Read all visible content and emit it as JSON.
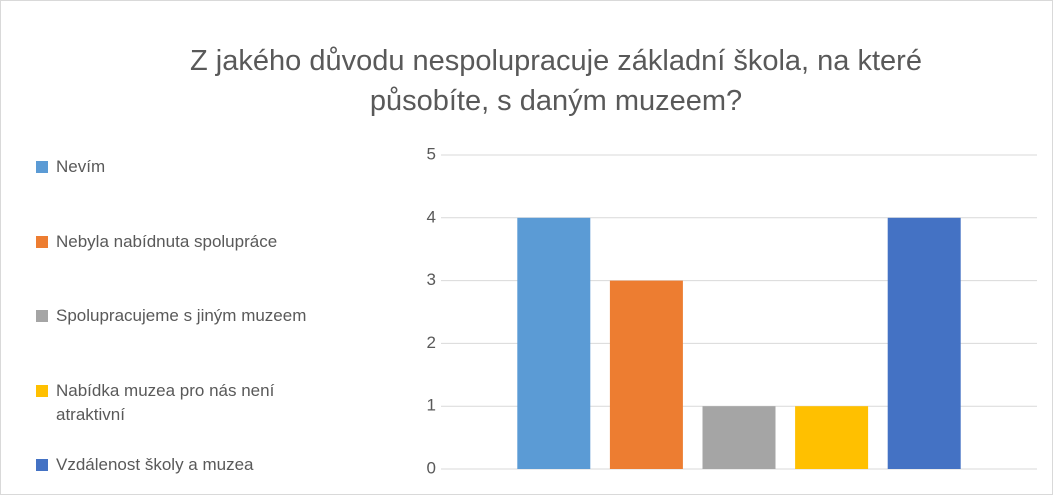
{
  "chart_data": {
    "type": "bar",
    "title": "Z jakého důvodu nespolupracuje základní škola, na které působíte, s daným muzeem?",
    "categories": [
      null
    ],
    "series": [
      {
        "name": "Nevím",
        "color": "#5b9bd5",
        "values": [
          4
        ]
      },
      {
        "name": "Nebyla nabídnuta spolupráce",
        "color": "#ed7d31",
        "values": [
          3
        ]
      },
      {
        "name": "Spolupracujeme s jiným muzeem",
        "color": "#a5a5a5",
        "values": [
          1
        ]
      },
      {
        "name": "Nabídka muzea pro nás není atraktivní",
        "color": "#ffc000",
        "values": [
          1
        ]
      },
      {
        "name": "Vzdálenost školy a muzea",
        "color": "#4472c4",
        "values": [
          4
        ]
      }
    ],
    "ylim": [
      0,
      5
    ],
    "yticks": [
      0,
      1,
      2,
      3,
      4,
      5
    ],
    "grid": true,
    "legend": "left"
  }
}
